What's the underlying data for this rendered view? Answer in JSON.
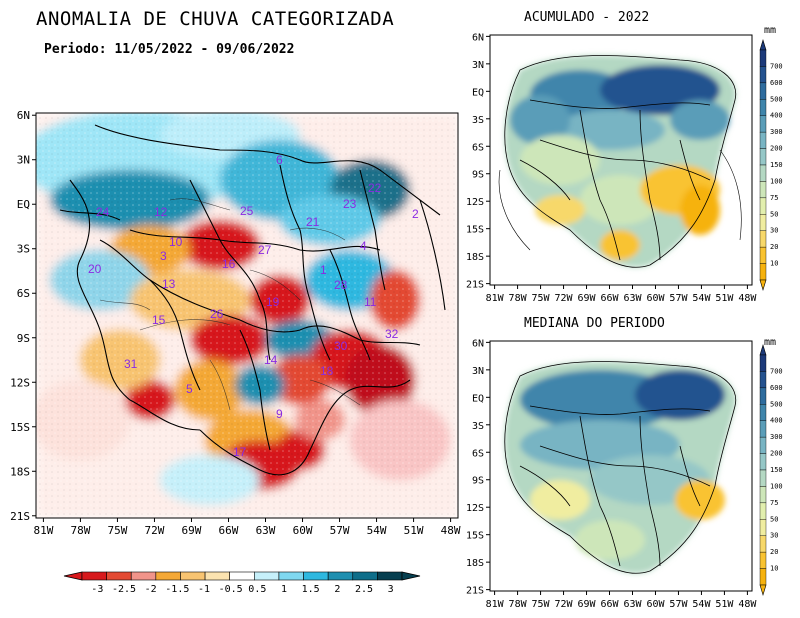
{
  "title": "ANOMALIA DE CHUVA CATEGORIZADA",
  "period": "Periodo: 11/05/2022 - 09/06/2022",
  "panels": {
    "accumulated_title": "ACUMULADO - 2022",
    "median_title": "MEDIANA DO PERIODO",
    "unit": "mm"
  },
  "axes": {
    "main_lat_labels": [
      "6N",
      "3N",
      "EQ",
      "3S",
      "6S",
      "9S",
      "12S",
      "15S",
      "18S",
      "21S"
    ],
    "main_lon_labels": [
      "81W",
      "78W",
      "75W",
      "72W",
      "69W",
      "66W",
      "63W",
      "60W",
      "57W",
      "54W",
      "51W",
      "48W"
    ],
    "small_lat_labels": [
      "6N",
      "3N",
      "EQ",
      "3S",
      "6S",
      "9S",
      "12S",
      "15S",
      "18S",
      "21S"
    ],
    "small_lon_labels": [
      "81W",
      "78W",
      "75W",
      "72W",
      "69W",
      "66W",
      "63W",
      "60W",
      "57W",
      "54W",
      "51W",
      "48W"
    ]
  },
  "anomaly_colorbar": {
    "labels": [
      "-3",
      "-2.5",
      "-2",
      "-1.5",
      "-1",
      "-0.5",
      "0.5",
      "1",
      "1.5",
      "2",
      "2.5",
      "3"
    ],
    "colors": [
      "#d7191c",
      "#e34a33",
      "#f1948a",
      "#f4a836",
      "#f8c471",
      "#fbe3b0",
      "#ffffff",
      "#c6f0fa",
      "#7fd8f0",
      "#2eb8e0",
      "#1e8fb0",
      "#0e6e8a",
      "#063f50"
    ]
  },
  "precip_colorbar": {
    "labels": [
      "700",
      "600",
      "500",
      "400",
      "300",
      "200",
      "150",
      "100",
      "75",
      "50",
      "30",
      "20",
      "10"
    ],
    "colors": [
      "#1c3a7a",
      "#24528f",
      "#2e6c9e",
      "#3f85ab",
      "#5a9db8",
      "#78b4c3",
      "#95c7c7",
      "#b4d8c3",
      "#cde6b9",
      "#e2efae",
      "#f0eda0",
      "#f7d86a",
      "#f9c331",
      "#f6b20e"
    ]
  },
  "basin_numbers": [
    "6",
    "22",
    "24",
    "12",
    "25",
    "21",
    "23",
    "2",
    "10",
    "3",
    "20",
    "13",
    "16",
    "27",
    "4",
    "1",
    "28",
    "11",
    "15",
    "26",
    "19",
    "32",
    "30",
    "31",
    "14",
    "18",
    "5",
    "9",
    "17"
  ]
}
